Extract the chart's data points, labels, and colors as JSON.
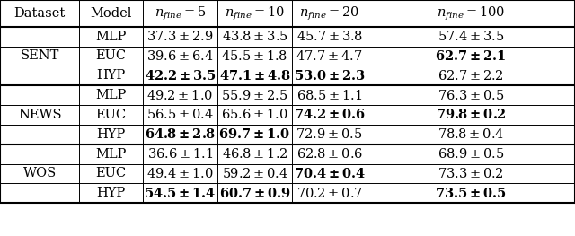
{
  "col_headers": [
    "Dataset",
    "Model",
    "n_fine = 5",
    "n_fine = 10",
    "n_fine = 20",
    "n_fine = 100"
  ],
  "datasets": [
    "SENT",
    "NEWS",
    "WOS"
  ],
  "models": [
    "MLP",
    "EUC",
    "HYP"
  ],
  "cells": [
    [
      "37.3",
      "2.9",
      false
    ],
    [
      "43.8",
      "3.5",
      false
    ],
    [
      "45.7",
      "3.8",
      false
    ],
    [
      "57.4",
      "3.5",
      false
    ],
    [
      "39.6",
      "6.4",
      false
    ],
    [
      "45.5",
      "1.8",
      false
    ],
    [
      "47.7",
      "4.7",
      false
    ],
    [
      "62.7",
      "2.1",
      true
    ],
    [
      "42.2",
      "3.5",
      true
    ],
    [
      "47.1",
      "4.8",
      true
    ],
    [
      "53.0",
      "2.3",
      true
    ],
    [
      "62.7",
      "2.2",
      false
    ],
    [
      "49.2",
      "1.0",
      false
    ],
    [
      "55.9",
      "2.5",
      false
    ],
    [
      "68.5",
      "1.1",
      false
    ],
    [
      "76.3",
      "0.5",
      false
    ],
    [
      "56.5",
      "0.4",
      false
    ],
    [
      "65.6",
      "1.0",
      false
    ],
    [
      "74.2",
      "0.6",
      true
    ],
    [
      "79.8",
      "0.2",
      true
    ],
    [
      "64.8",
      "2.8",
      true
    ],
    [
      "69.7",
      "1.0",
      true
    ],
    [
      "72.9",
      "0.5",
      false
    ],
    [
      "78.8",
      "0.4",
      false
    ],
    [
      "36.6",
      "1.1",
      false
    ],
    [
      "46.8",
      "1.2",
      false
    ],
    [
      "62.8",
      "0.6",
      false
    ],
    [
      "68.9",
      "0.5",
      false
    ],
    [
      "49.4",
      "1.0",
      false
    ],
    [
      "59.2",
      "0.4",
      false
    ],
    [
      "70.4",
      "0.4",
      true
    ],
    [
      "73.3",
      "0.2",
      false
    ],
    [
      "54.5",
      "1.4",
      true
    ],
    [
      "60.7",
      "0.9",
      true
    ],
    [
      "70.2",
      "0.7",
      false
    ],
    [
      "73.5",
      "0.5",
      true
    ]
  ],
  "figsize": [
    6.4,
    2.63
  ],
  "dpi": 100
}
